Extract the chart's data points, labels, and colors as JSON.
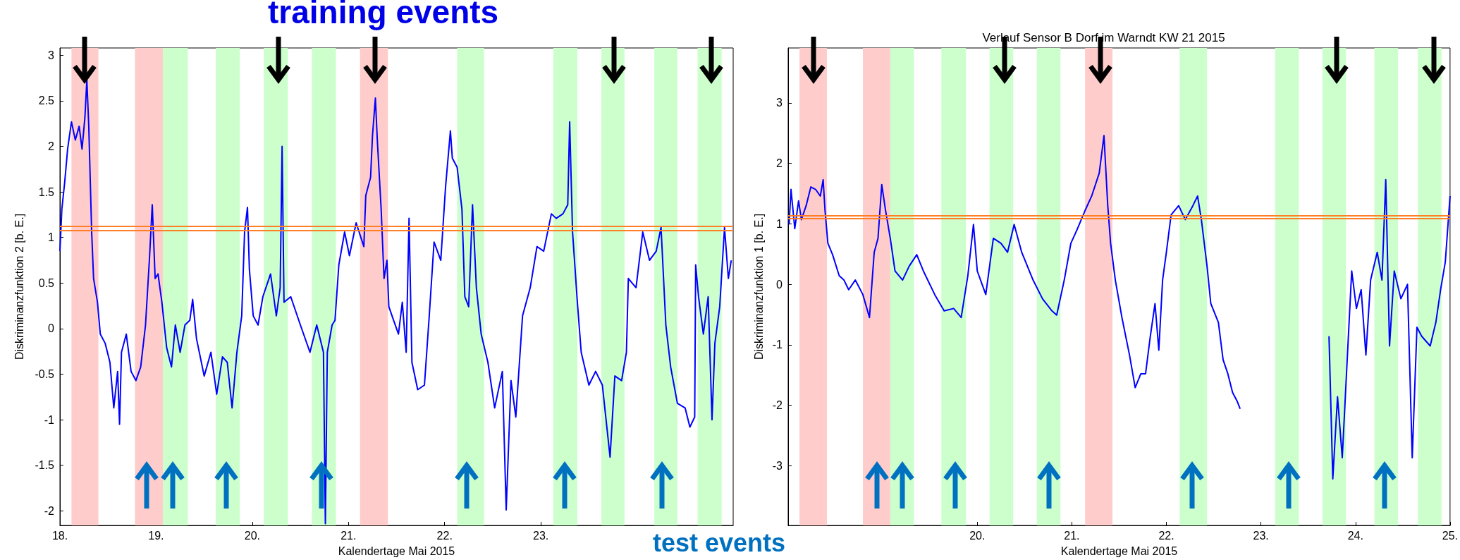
{
  "chart_data": [
    {
      "type": "line",
      "xlabel": "Kalendertage Mai 2015",
      "ylabel": "Diskriminanzfunktion 2 [b. E.]",
      "annotations": [
        "training events"
      ],
      "xlim": [
        18,
        25
      ],
      "xticks": [
        {
          "value": 18,
          "label": "18."
        },
        {
          "value": 19,
          "label": "19."
        },
        {
          "value": 20,
          "label": "20."
        },
        {
          "value": 21,
          "label": "21."
        },
        {
          "value": 22,
          "label": "22."
        },
        {
          "value": 23,
          "label": "23."
        }
      ],
      "ylim": [
        -2.16,
        3.08
      ],
      "yticks": [
        -2,
        -1.5,
        -1,
        -0.5,
        0,
        0.5,
        1,
        1.5,
        2,
        2.5,
        3
      ],
      "grid": false,
      "marker": "none",
      "line_style": "solid",
      "ref_lines": [
        {
          "axis": "y",
          "value": 1.08,
          "color": "#ff7f27"
        },
        {
          "axis": "y",
          "value": 1.12,
          "color": "#ff7f27"
        }
      ],
      "bands": [
        {
          "axis": "x",
          "from": 18.12,
          "to": 18.4,
          "color": "#ffcccc"
        },
        {
          "axis": "x",
          "from": 18.78,
          "to": 19.07,
          "color": "#ffcccc"
        },
        {
          "axis": "x",
          "from": 21.12,
          "to": 21.41,
          "color": "#ffcccc"
        },
        {
          "axis": "x",
          "from": 19.07,
          "to": 19.33,
          "color": "#ccffcc"
        },
        {
          "axis": "x",
          "from": 19.62,
          "to": 19.87,
          "color": "#ccffcc"
        },
        {
          "axis": "x",
          "from": 20.12,
          "to": 20.37,
          "color": "#ccffcc"
        },
        {
          "axis": "x",
          "from": 20.62,
          "to": 20.87,
          "color": "#ccffcc"
        },
        {
          "axis": "x",
          "from": 22.13,
          "to": 22.41,
          "color": "#ccffcc"
        },
        {
          "axis": "x",
          "from": 23.13,
          "to": 23.38,
          "color": "#ccffcc"
        },
        {
          "axis": "x",
          "from": 23.63,
          "to": 23.87,
          "color": "#ccffcc"
        },
        {
          "axis": "x",
          "from": 24.18,
          "to": 24.42,
          "color": "#ccffcc"
        },
        {
          "axis": "x",
          "from": 24.63,
          "to": 24.88,
          "color": "#ccffcc"
        }
      ],
      "series": [
        {
          "color": "#0000ff",
          "x": [
            18.0,
            18.02,
            18.05,
            18.08,
            18.12,
            18.16,
            18.2,
            18.23,
            18.26,
            18.28,
            18.3,
            18.33,
            18.35,
            18.39,
            18.42,
            18.47,
            18.52,
            18.56,
            18.6,
            18.62,
            18.64,
            18.69,
            18.74,
            18.79,
            18.84,
            18.89,
            18.93,
            18.96,
            18.99,
            19.02,
            19.06,
            19.11,
            19.16,
            19.2,
            19.25,
            19.3,
            19.35,
            19.38,
            19.42,
            19.5,
            19.57,
            19.63,
            19.69,
            19.74,
            19.79,
            19.84,
            19.89,
            19.92,
            19.95,
            19.97,
            20.01,
            20.06,
            20.11,
            20.19,
            20.25,
            20.29,
            20.31,
            20.33,
            20.4,
            20.5,
            20.6,
            20.67,
            20.74,
            20.76,
            20.78,
            20.83,
            20.86,
            20.9,
            20.96,
            21.01,
            21.08,
            21.16,
            21.18,
            21.23,
            21.25,
            21.28,
            21.3,
            21.34,
            21.37,
            21.4,
            21.42,
            21.47,
            21.52,
            21.56,
            21.6,
            21.63,
            21.66,
            21.72,
            21.79,
            21.84,
            21.89,
            21.96,
            22.01,
            22.06,
            22.08,
            22.13,
            22.18,
            22.21,
            22.25,
            22.29,
            22.33,
            22.38,
            22.45,
            22.52,
            22.6,
            22.64,
            22.69,
            22.74,
            22.81,
            22.89,
            22.96,
            23.03,
            23.11,
            23.16,
            23.23,
            23.28,
            23.3,
            23.33,
            23.38,
            23.42,
            23.5,
            23.57,
            23.64,
            23.72,
            23.77,
            23.84,
            23.89,
            23.91,
            23.99,
            24.06,
            24.13,
            24.2,
            24.25,
            24.3,
            24.35,
            24.42,
            24.5,
            24.55,
            24.6,
            24.61,
            24.64,
            24.69,
            24.74,
            24.78,
            24.81,
            24.86,
            24.91,
            24.95,
            24.98
          ],
          "values": [
            0.85,
            1.31,
            1.61,
            1.97,
            2.27,
            2.07,
            2.22,
            1.97,
            2.32,
            2.73,
            2.22,
            1.06,
            0.55,
            0.29,
            -0.06,
            -0.16,
            -0.37,
            -0.87,
            -0.47,
            -1.05,
            -0.26,
            -0.06,
            -0.47,
            -0.57,
            -0.42,
            0.04,
            0.75,
            1.36,
            0.55,
            0.6,
            0.29,
            -0.21,
            -0.42,
            0.04,
            -0.26,
            0.04,
            0.09,
            0.32,
            -0.11,
            -0.52,
            -0.26,
            -0.72,
            -0.31,
            -0.37,
            -0.87,
            -0.26,
            0.14,
            1.06,
            1.33,
            0.65,
            0.14,
            0.04,
            0.35,
            0.6,
            0.14,
            0.45,
            2.0,
            0.29,
            0.35,
            0.04,
            -0.26,
            0.04,
            -0.26,
            -2.14,
            -0.26,
            0.04,
            0.09,
            0.7,
            1.06,
            0.8,
            1.16,
            0.9,
            1.46,
            1.66,
            2.12,
            2.53,
            2.07,
            1.31,
            0.55,
            0.75,
            0.24,
            0.09,
            -0.06,
            0.29,
            -0.26,
            1.21,
            -0.37,
            -0.67,
            -0.62,
            0.14,
            0.95,
            0.75,
            1.56,
            2.17,
            1.87,
            1.77,
            1.31,
            0.35,
            0.24,
            1.36,
            0.45,
            -0.06,
            -0.37,
            -0.87,
            -0.47,
            -1.99,
            -0.57,
            -0.97,
            0.14,
            0.45,
            0.9,
            0.85,
            1.26,
            1.21,
            1.26,
            1.36,
            2.27,
            1.06,
            0.29,
            -0.26,
            -0.62,
            -0.47,
            -0.62,
            -1.41,
            -0.52,
            -0.57,
            -0.26,
            0.55,
            0.45,
            1.06,
            0.75,
            0.85,
            1.11,
            0.04,
            -0.42,
            -0.82,
            -0.87,
            -1.08,
            -0.97,
            0.7,
            0.35,
            -0.06,
            0.35,
            -1.0,
            -0.16,
            0.24,
            1.11,
            0.55,
            0.75
          ]
        }
      ]
    },
    {
      "type": "line",
      "title": "Verlauf Sensor B Dorf im Warndt KW 21 2015",
      "xlabel": "Kalendertage Mai 2015",
      "ylabel": "Diskriminanzfunktion 1 [b. E.]",
      "annotations": [
        "test events"
      ],
      "xlim": [
        18,
        25
      ],
      "xticks": [
        {
          "value": 20,
          "label": "20."
        },
        {
          "value": 21,
          "label": "21."
        },
        {
          "value": 22,
          "label": "22."
        },
        {
          "value": 23,
          "label": "23."
        },
        {
          "value": 24,
          "label": "24."
        },
        {
          "value": 25,
          "label": "25."
        }
      ],
      "ylim": [
        -3.99,
        3.91
      ],
      "yticks": [
        -3,
        -2,
        -1,
        0,
        1,
        2,
        3
      ],
      "grid": false,
      "marker": "none",
      "line_style": "solid",
      "ref_lines": [
        {
          "axis": "y",
          "value": 1.09,
          "color": "#ff7f27"
        },
        {
          "axis": "y",
          "value": 1.13,
          "color": "#ff7f27"
        }
      ],
      "bands": [
        {
          "axis": "x",
          "from": 18.12,
          "to": 18.41,
          "color": "#ffcccc"
        },
        {
          "axis": "x",
          "from": 18.79,
          "to": 19.08,
          "color": "#ffcccc"
        },
        {
          "axis": "x",
          "from": 21.14,
          "to": 21.43,
          "color": "#ffcccc"
        },
        {
          "axis": "x",
          "from": 19.08,
          "to": 19.33,
          "color": "#ccffcc"
        },
        {
          "axis": "x",
          "from": 19.62,
          "to": 19.88,
          "color": "#ccffcc"
        },
        {
          "axis": "x",
          "from": 20.13,
          "to": 20.38,
          "color": "#ccffcc"
        },
        {
          "axis": "x",
          "from": 20.63,
          "to": 20.88,
          "color": "#ccffcc"
        },
        {
          "axis": "x",
          "from": 22.14,
          "to": 22.43,
          "color": "#ccffcc"
        },
        {
          "axis": "x",
          "from": 23.15,
          "to": 23.4,
          "color": "#ccffcc"
        },
        {
          "axis": "x",
          "from": 23.65,
          "to": 23.9,
          "color": "#ccffcc"
        },
        {
          "axis": "x",
          "from": 24.2,
          "to": 24.45,
          "color": "#ccffcc"
        },
        {
          "axis": "x",
          "from": 24.66,
          "to": 24.91,
          "color": "#ccffcc"
        }
      ],
      "series": [
        {
          "color": "#0000ff",
          "x": [
            18.01,
            18.03,
            18.07,
            18.11,
            18.14,
            18.19,
            18.24,
            18.29,
            18.34,
            18.37,
            18.39,
            18.42,
            18.47,
            18.54,
            18.59,
            18.64,
            18.71,
            18.79,
            18.86,
            18.91,
            18.95,
            18.99,
            19.03,
            19.08,
            19.13,
            19.21,
            19.28,
            19.36,
            19.43,
            19.55,
            19.65,
            19.75,
            19.83,
            19.9,
            19.96,
            20.0,
            20.09,
            20.17,
            20.25,
            20.32,
            20.39,
            20.47,
            20.59,
            20.69,
            20.79,
            20.84,
            20.92,
            20.99,
            21.06,
            21.14,
            21.21,
            21.29,
            21.34,
            21.38,
            21.41,
            21.46,
            21.53,
            21.61,
            21.67,
            21.73,
            21.78,
            21.83,
            21.88,
            21.92,
            21.96,
            22.0,
            22.05,
            22.13,
            22.2,
            22.28,
            22.33,
            22.37,
            22.43,
            22.47,
            22.55,
            22.6,
            22.65,
            22.7,
            22.75,
            22.78,
            23.2,
            23.72,
            23.76,
            23.81,
            23.86,
            23.91,
            23.96,
            24.01,
            24.06,
            24.11,
            24.16,
            24.23,
            24.28,
            24.32,
            24.36,
            24.41,
            24.48,
            24.55,
            24.6,
            24.65,
            24.7,
            24.79,
            24.85,
            24.9,
            24.95,
            25.0
          ],
          "values": [
            0.99,
            1.57,
            0.92,
            1.38,
            1.07,
            1.3,
            1.61,
            1.57,
            1.46,
            1.73,
            1.22,
            0.68,
            0.49,
            0.14,
            0.07,
            -0.09,
            0.07,
            -0.17,
            -0.55,
            0.53,
            0.76,
            1.65,
            1.22,
            0.76,
            0.22,
            0.07,
            0.3,
            0.49,
            0.22,
            -0.17,
            -0.44,
            -0.4,
            -0.55,
            0.14,
            0.99,
            0.22,
            -0.17,
            0.76,
            0.68,
            0.53,
            0.99,
            0.53,
            0.07,
            -0.24,
            -0.44,
            -0.51,
            0.07,
            0.68,
            0.92,
            1.22,
            1.46,
            1.84,
            2.46,
            1.3,
            0.68,
            0.07,
            -0.55,
            -1.17,
            -1.71,
            -1.48,
            -1.48,
            -0.86,
            -0.32,
            -1.09,
            0.07,
            0.53,
            1.15,
            1.3,
            1.07,
            1.3,
            1.46,
            1.07,
            0.3,
            -0.32,
            -0.63,
            -1.25,
            -1.48,
            -1.79,
            -1.94,
            -2.06,
            null,
            -0.86,
            -3.22,
            -1.86,
            -2.87,
            -1.32,
            0.22,
            -0.4,
            -0.09,
            -1.17,
            0.07,
            0.53,
            0.07,
            1.73,
            -1.02,
            0.22,
            -0.24,
            0.0,
            -2.87,
            -0.71,
            -0.86,
            -1.02,
            -0.63,
            -0.09,
            0.37,
            1.46
          ]
        }
      ]
    }
  ]
}
